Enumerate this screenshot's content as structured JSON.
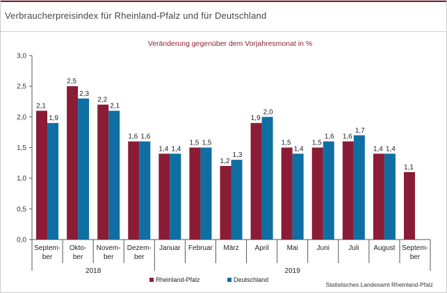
{
  "page": {
    "title": "Verbraucherpreisindex für Rheinland-Pfalz und für Deutschland",
    "source": "Statistisches Landesamt Rheinland-Pfalz"
  },
  "colors": {
    "rheinland_pfalz": "#8b1c36",
    "deutschland": "#0f6fa3",
    "subtitle": "#8b1c36",
    "header_accent": "#8b1c36"
  },
  "chart_data": {
    "type": "bar",
    "subtitle": "Veränderung gegenüber dem Vorjahresmonat in %",
    "categories": [
      "Septem-\nber",
      "Okto-\nber",
      "Novem-\nber",
      "Dezem-\nber",
      "Januar",
      "Februar",
      "März",
      "April",
      "Mai",
      "Juni",
      "Juli",
      "August",
      "Septem-\nber"
    ],
    "year_groups": [
      {
        "label": "2018",
        "from": 0,
        "to": 3
      },
      {
        "label": "2019",
        "from": 4,
        "to": 12
      }
    ],
    "series": [
      {
        "name": "Rheinland-Pfalz",
        "values": [
          2.1,
          2.5,
          2.2,
          1.6,
          1.4,
          1.5,
          1.2,
          1.9,
          1.5,
          1.5,
          1.6,
          1.4,
          1.1
        ]
      },
      {
        "name": "Deutschland",
        "values": [
          1.9,
          2.3,
          2.1,
          1.6,
          1.4,
          1.5,
          1.3,
          2.0,
          1.4,
          1.6,
          1.7,
          1.4,
          null
        ]
      }
    ],
    "ylim": [
      0,
      3.0
    ],
    "yticks": [
      "0,0",
      "0,5",
      "1,0",
      "1,5",
      "2,0",
      "2,5",
      "3,0"
    ],
    "grid": false,
    "legend_position": "bottom-left"
  }
}
